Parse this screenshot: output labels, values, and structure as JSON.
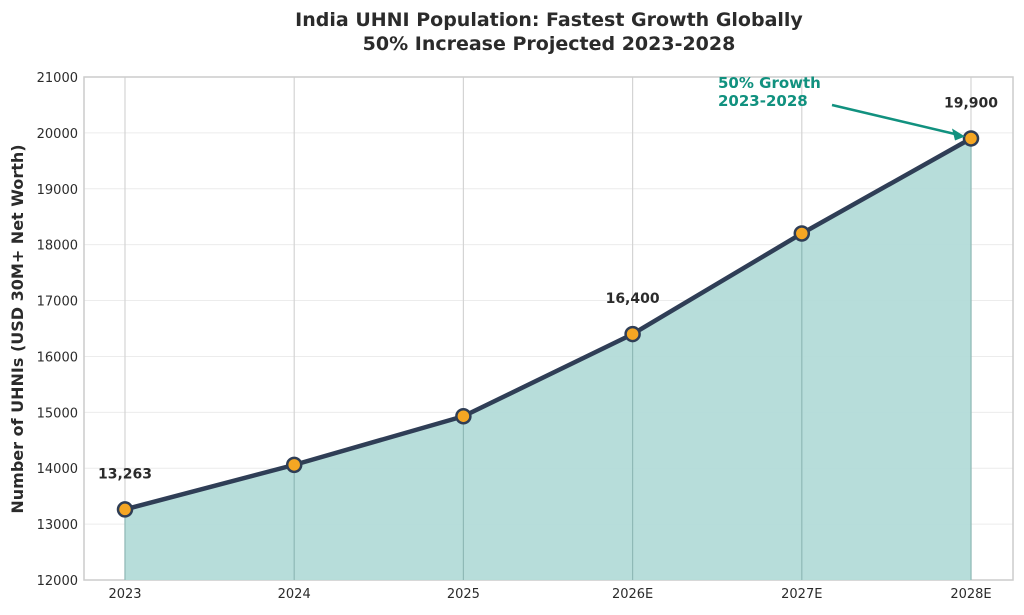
{
  "chart_data": {
    "type": "area",
    "title": "India UHNI Population: Fastest Growth Globally",
    "subtitle": "50% Increase Projected 2023-2028",
    "xlabel": "",
    "ylabel": "Number of UHNIs (USD 30M+ Net Worth)",
    "categories": [
      "2023",
      "2024",
      "2025",
      "2026E",
      "2027E",
      "2028E"
    ],
    "values": [
      13263,
      14060,
      14930,
      16400,
      18200,
      19900
    ],
    "ylim": [
      12000,
      21000
    ],
    "yticks": [
      12000,
      13000,
      14000,
      15000,
      16000,
      17000,
      18000,
      19000,
      20000,
      21000
    ],
    "grid": true,
    "data_labels": [
      {
        "category": "2023",
        "text": "13,263"
      },
      {
        "category": "2026E",
        "text": "16,400"
      },
      {
        "category": "2028E",
        "text": "19,900"
      }
    ],
    "annotation": {
      "line1": "50% Growth",
      "line2": "2023-2028",
      "target": "2028E"
    },
    "colors": {
      "line": "#2f3e56",
      "fill": "#b3dbd8",
      "marker": "#f5a623",
      "annotation": "#11917f",
      "text": "#2b2b2b"
    }
  }
}
